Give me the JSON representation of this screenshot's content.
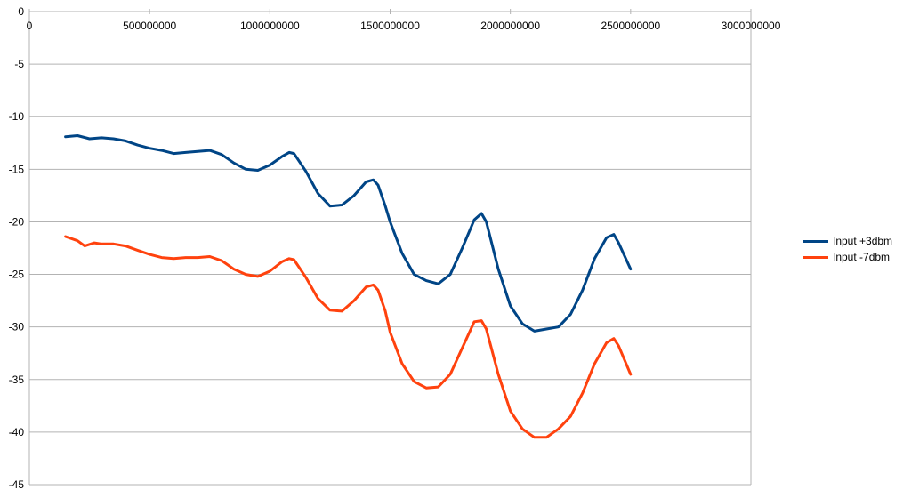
{
  "chart_data": {
    "type": "line",
    "title": "",
    "xlabel": "",
    "ylabel": "",
    "xlim": [
      0,
      3000000000
    ],
    "ylim": [
      -45,
      0
    ],
    "x_ticks": [
      "0",
      "500000000",
      "1000000000",
      "1500000000",
      "2000000000",
      "2500000000",
      "3000000000"
    ],
    "y_ticks": [
      "0",
      "-5",
      "-10",
      "-15",
      "-20",
      "-25",
      "-30",
      "-35",
      "-40",
      "-45"
    ],
    "x_tick_values": [
      0,
      500000000,
      1000000000,
      1500000000,
      2000000000,
      2500000000,
      3000000000
    ],
    "y_tick_values": [
      0,
      -5,
      -10,
      -15,
      -20,
      -25,
      -30,
      -35,
      -40,
      -45
    ],
    "grid": "horizontal",
    "legend_position": "right",
    "series": [
      {
        "name": "Input +3dbm",
        "color": "#004586",
        "x": [
          150000000,
          200000000,
          250000000,
          300000000,
          350000000,
          400000000,
          450000000,
          500000000,
          550000000,
          600000000,
          650000000,
          700000000,
          750000000,
          800000000,
          850000000,
          900000000,
          950000000,
          1000000000,
          1050000000,
          1080000000,
          1100000000,
          1150000000,
          1200000000,
          1250000000,
          1300000000,
          1350000000,
          1400000000,
          1430000000,
          1450000000,
          1480000000,
          1500000000,
          1550000000,
          1600000000,
          1650000000,
          1700000000,
          1750000000,
          1800000000,
          1850000000,
          1880000000,
          1900000000,
          1950000000,
          2000000000,
          2050000000,
          2100000000,
          2150000000,
          2200000000,
          2250000000,
          2300000000,
          2350000000,
          2400000000,
          2430000000,
          2450000000,
          2500000000
        ],
        "values": [
          -11.9,
          -11.8,
          -12.1,
          -12.0,
          -12.1,
          -12.3,
          -12.7,
          -13.0,
          -13.2,
          -13.5,
          -13.4,
          -13.3,
          -13.2,
          -13.6,
          -14.4,
          -15.0,
          -15.1,
          -14.6,
          -13.8,
          -13.4,
          -13.5,
          -15.2,
          -17.3,
          -18.5,
          -18.4,
          -17.5,
          -16.2,
          -16.0,
          -16.5,
          -18.5,
          -20.0,
          -23.0,
          -25.0,
          -25.6,
          -25.9,
          -25.0,
          -22.5,
          -19.8,
          -19.2,
          -20.0,
          -24.5,
          -28.0,
          -29.7,
          -30.4,
          -30.2,
          -30.0,
          -28.8,
          -26.5,
          -23.5,
          -21.5,
          -21.2,
          -22.0,
          -24.5
        ]
      },
      {
        "name": "Input -7dbm",
        "color": "#ff420e",
        "x": [
          150000000,
          200000000,
          230000000,
          270000000,
          300000000,
          350000000,
          400000000,
          450000000,
          500000000,
          550000000,
          600000000,
          650000000,
          700000000,
          750000000,
          800000000,
          850000000,
          900000000,
          950000000,
          1000000000,
          1050000000,
          1080000000,
          1100000000,
          1150000000,
          1200000000,
          1250000000,
          1300000000,
          1350000000,
          1400000000,
          1430000000,
          1450000000,
          1480000000,
          1500000000,
          1550000000,
          1600000000,
          1650000000,
          1700000000,
          1750000000,
          1800000000,
          1850000000,
          1880000000,
          1900000000,
          1950000000,
          2000000000,
          2050000000,
          2100000000,
          2150000000,
          2200000000,
          2250000000,
          2300000000,
          2350000000,
          2400000000,
          2430000000,
          2450000000,
          2500000000
        ],
        "values": [
          -21.4,
          -21.8,
          -22.3,
          -22.0,
          -22.1,
          -22.1,
          -22.3,
          -22.7,
          -23.1,
          -23.4,
          -23.5,
          -23.4,
          -23.4,
          -23.3,
          -23.7,
          -24.5,
          -25.0,
          -25.2,
          -24.7,
          -23.8,
          -23.5,
          -23.6,
          -25.3,
          -27.3,
          -28.4,
          -28.5,
          -27.5,
          -26.2,
          -26.0,
          -26.5,
          -28.5,
          -30.5,
          -33.5,
          -35.2,
          -35.8,
          -35.7,
          -34.5,
          -32.0,
          -29.5,
          -29.4,
          -30.2,
          -34.5,
          -38.0,
          -39.7,
          -40.5,
          -40.5,
          -39.7,
          -38.5,
          -36.3,
          -33.5,
          -31.5,
          -31.1,
          -31.8,
          -34.5
        ]
      }
    ]
  }
}
